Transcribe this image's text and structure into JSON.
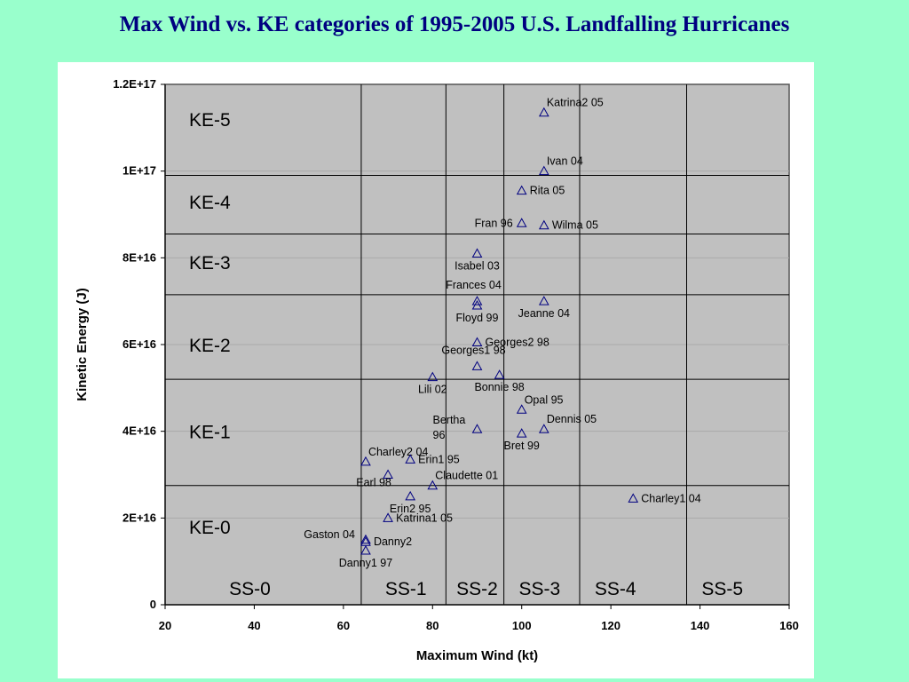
{
  "title": "Max Wind vs. KE categories of 1995-2005 U.S. Landfalling Hurricanes",
  "colors": {
    "background": "#99ffcc",
    "panel": "#ffffff",
    "plot_area": "#c0c0c0",
    "marker": "#000080",
    "title": "#000080"
  },
  "chart_data": {
    "type": "scatter",
    "xlabel": "Maximum Wind (kt)",
    "ylabel": "Kinetic Energy (J)",
    "xlim": [
      20,
      160
    ],
    "ylim": [
      0,
      1.2e+17
    ],
    "x_ticks": [
      20,
      40,
      60,
      80,
      100,
      120,
      140,
      160
    ],
    "x_tick_labels": [
      "20",
      "40",
      "60",
      "80",
      "100",
      "120",
      "140",
      "160"
    ],
    "y_ticks": [
      0,
      2e+16,
      4e+16,
      6e+16,
      8e+16,
      1e+17,
      1.2e+17
    ],
    "y_tick_labels": [
      "0",
      "2E+16",
      "4E+16",
      "6E+16",
      "8E+16",
      "1E+17",
      "1.2E+17"
    ],
    "marker": "triangle-open",
    "ke_boundaries": [
      2.75e+16,
      5.2e+16,
      7.15e+16,
      8.55e+16,
      9.9e+16
    ],
    "ke_categories": [
      {
        "label": "KE-0",
        "y": 1.8e+16
      },
      {
        "label": "KE-1",
        "y": 4e+16
      },
      {
        "label": "KE-2",
        "y": 6e+16
      },
      {
        "label": "KE-3",
        "y": 7.9e+16
      },
      {
        "label": "KE-4",
        "y": 9.3e+16
      },
      {
        "label": "KE-5",
        "y": 1.12e+17
      }
    ],
    "ss_boundaries": [
      64,
      83,
      96,
      113,
      137
    ],
    "ss_categories": [
      {
        "label": "SS-0",
        "x": 39
      },
      {
        "label": "SS-1",
        "x": 74
      },
      {
        "label": "SS-2",
        "x": 90
      },
      {
        "label": "SS-3",
        "x": 104
      },
      {
        "label": "SS-4",
        "x": 121
      },
      {
        "label": "SS-5",
        "x": 145
      }
    ],
    "points": [
      {
        "name": "Katrina2 05",
        "x": 105,
        "y": 1.135e+17,
        "label_pos": "right-up"
      },
      {
        "name": "Ivan 04",
        "x": 105,
        "y": 1e+17,
        "label_pos": "right-up"
      },
      {
        "name": "Rita 05",
        "x": 100,
        "y": 9.55e+16,
        "label_pos": "right"
      },
      {
        "name": "Fran 96",
        "x": 100,
        "y": 8.8e+16,
        "label_pos": "left"
      },
      {
        "name": "Wilma 05",
        "x": 105,
        "y": 8.75e+16,
        "label_pos": "right"
      },
      {
        "name": "Isabel 03",
        "x": 90,
        "y": 8.1e+16,
        "label_pos": "below"
      },
      {
        "name": "Frances 04",
        "x": 90,
        "y": 7e+16,
        "label_pos": "above"
      },
      {
        "name": "Floyd 99",
        "x": 90,
        "y": 6.9e+16,
        "label_pos": "below"
      },
      {
        "name": "Jeanne 04",
        "x": 105,
        "y": 7e+16,
        "label_pos": "below"
      },
      {
        "name": "Georges2 98",
        "x": 90,
        "y": 6.05e+16,
        "label_pos": "right"
      },
      {
        "name": "Georges1 98",
        "x": 90,
        "y": 5.5e+16,
        "label_pos": "above"
      },
      {
        "name": "Bonnie 98",
        "x": 95,
        "y": 5.3e+16,
        "label_pos": "below"
      },
      {
        "name": "Lili 02",
        "x": 80,
        "y": 5.25e+16,
        "label_pos": "below"
      },
      {
        "name": "Opal 95",
        "x": 100,
        "y": 4.5e+16,
        "label_pos": "right-up"
      },
      {
        "name": "Dennis 05",
        "x": 105,
        "y": 4.05e+16,
        "label_pos": "right-up"
      },
      {
        "name": "Bertha 96",
        "x": 90,
        "y": 4.05e+16,
        "label_pos": "left-2line"
      },
      {
        "name": "Bret 99",
        "x": 100,
        "y": 3.95e+16,
        "label_pos": "below"
      },
      {
        "name": "Charley2 04",
        "x": 65,
        "y": 3.3e+16,
        "label_pos": "right-up"
      },
      {
        "name": "Erin1 95",
        "x": 75,
        "y": 3.35e+16,
        "label_pos": "right"
      },
      {
        "name": "Earl 98",
        "x": 70,
        "y": 3e+16,
        "label_pos": "below-left"
      },
      {
        "name": "Claudette 01",
        "x": 80,
        "y": 2.75e+16,
        "label_pos": "right-up"
      },
      {
        "name": "Erin2 95",
        "x": 75,
        "y": 2.5e+16,
        "label_pos": "below"
      },
      {
        "name": "Charley1 04",
        "x": 125,
        "y": 2.45e+16,
        "label_pos": "right"
      },
      {
        "name": "Katrina1 05",
        "x": 70,
        "y": 2e+16,
        "label_pos": "right"
      },
      {
        "name": "Gaston 04",
        "x": 65,
        "y": 1.5e+16,
        "label_pos": "left-up"
      },
      {
        "name": "Danny2",
        "x": 65,
        "y": 1.45e+16,
        "label_pos": "right"
      },
      {
        "name": "Danny1 97",
        "x": 65,
        "y": 1.25e+16,
        "label_pos": "below"
      }
    ]
  }
}
